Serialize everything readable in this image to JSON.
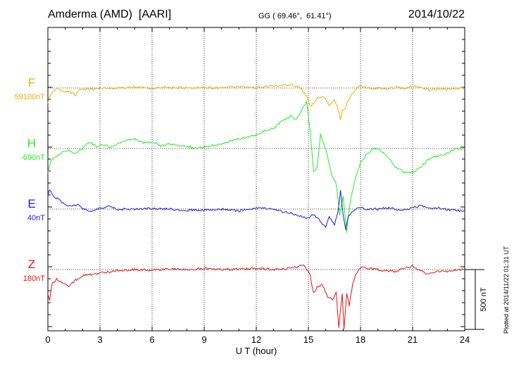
{
  "title": {
    "left": "Amderma (AMD)  [AARI]",
    "middle": "GG ( 69.46°,  61.41°)",
    "right": "2014/10/22"
  },
  "side_note": "Plotted at 2014/11/22 01:31 UT",
  "scale_bar_label": "500 nT",
  "chart_data": {
    "type": "line",
    "xlabel": "U T (hour)",
    "xlim": [
      0,
      24
    ],
    "x_ticks": [
      "0",
      "3",
      "6",
      "9",
      "12",
      "15",
      "18",
      "21",
      "24"
    ],
    "x_grid_hours": [
      3,
      6,
      9,
      12,
      15,
      18,
      21
    ],
    "scale_bar_nT": 500,
    "series": [
      {
        "name": "F",
        "baseline_label": "59100nT",
        "color": "#f5a800",
        "x": [
          0,
          0.15,
          0.3,
          0.5,
          0.8,
          1.0,
          1.3,
          1.6,
          1.75,
          2.0,
          2.3,
          2.6,
          3.0,
          3.5,
          4.0,
          4.5,
          5.0,
          5.5,
          6.0,
          7.0,
          8.0,
          9.0,
          10.0,
          11.0,
          12.0,
          12.5,
          13.0,
          13.5,
          14.0,
          14.3,
          14.6,
          14.9,
          15.1,
          15.3,
          15.45,
          15.6,
          15.8,
          16.0,
          16.2,
          16.5,
          16.7,
          16.85,
          16.95,
          17.1,
          17.25,
          17.45,
          17.7,
          18.0,
          18.3,
          18.7,
          19.0,
          19.5,
          20.0,
          20.5,
          21.0,
          21.4,
          21.7,
          22.0,
          22.5,
          23.0,
          23.5,
          24.0
        ],
        "y": [
          -120,
          -55,
          -40,
          0,
          -20,
          -30,
          -35,
          -60,
          -25,
          -10,
          -8,
          -12,
          0,
          -5,
          4,
          2,
          8,
          5,
          0,
          5,
          2,
          0,
          5,
          10,
          4,
          12,
          18,
          22,
          30,
          15,
          -10,
          -70,
          -150,
          -130,
          -90,
          -80,
          -70,
          -95,
          -150,
          -100,
          -170,
          -270,
          -190,
          -180,
          -120,
          -60,
          -15,
          20,
          0,
          -5,
          -2,
          -10,
          5,
          -2,
          15,
          5,
          -8,
          -20,
          -4,
          -10,
          -2,
          0
        ]
      },
      {
        "name": "H",
        "baseline_label": "-690nT",
        "color": "#22ee22",
        "x": [
          0,
          0.2,
          0.5,
          0.8,
          1.2,
          1.6,
          2.0,
          2.4,
          2.8,
          3.2,
          3.6,
          4.0,
          4.5,
          5.0,
          5.5,
          6.0,
          6.5,
          7.0,
          8.0,
          8.5,
          9.0,
          10.0,
          11.0,
          12.0,
          12.5,
          13.0,
          13.5,
          14.0,
          14.3,
          14.6,
          14.9,
          15.1,
          15.3,
          15.5,
          15.7,
          15.9,
          16.1,
          16.3,
          16.6,
          16.8,
          17.0,
          17.2,
          17.4,
          17.7,
          18.0,
          18.3,
          18.7,
          19.0,
          19.5,
          20.0,
          20.5,
          21.0,
          21.5,
          22.0,
          22.5,
          23.0,
          23.5,
          24.0
        ],
        "y": [
          -200,
          -100,
          -60,
          -30,
          -20,
          -40,
          0,
          50,
          20,
          30,
          10,
          40,
          70,
          80,
          50,
          60,
          20,
          40,
          20,
          0,
          10,
          40,
          80,
          110,
          150,
          170,
          230,
          270,
          240,
          320,
          390,
          150,
          -200,
          -160,
          120,
          40,
          -60,
          -200,
          -300,
          -550,
          -400,
          -700,
          -450,
          -250,
          -120,
          -60,
          0,
          0,
          -60,
          -150,
          -200,
          -200,
          -150,
          -80,
          -60,
          -40,
          0,
          0
        ]
      },
      {
        "name": "E",
        "baseline_label": "40nT",
        "color": "#1a1adc",
        "x": [
          0,
          0.1,
          0.3,
          0.6,
          1.0,
          1.4,
          1.7,
          2.0,
          2.5,
          3.0,
          3.5,
          4.0,
          5.0,
          6.0,
          7.0,
          8.0,
          9.0,
          10.0,
          11.0,
          12.0,
          13.0,
          13.5,
          14.0,
          14.5,
          15.0,
          15.2,
          15.5,
          15.8,
          16.0,
          16.2,
          16.5,
          16.7,
          16.85,
          17.0,
          17.15,
          17.3,
          17.6,
          18.0,
          18.5,
          19.0,
          19.5,
          20.0,
          20.5,
          21.0,
          21.5,
          22.0,
          22.5,
          23.0,
          23.5,
          24.0
        ],
        "y": [
          120,
          160,
          110,
          80,
          40,
          20,
          40,
          0,
          -15,
          5,
          20,
          0,
          0,
          5,
          0,
          -10,
          -10,
          0,
          -15,
          10,
          0,
          -25,
          -30,
          -60,
          -80,
          -45,
          -70,
          -120,
          -150,
          -60,
          -130,
          -20,
          150,
          -50,
          -170,
          -60,
          -10,
          15,
          -5,
          0,
          10,
          0,
          -10,
          10,
          30,
          0,
          10,
          -5,
          -10,
          -20
        ]
      },
      {
        "name": "Z",
        "baseline_label": "180nT",
        "color": "#e81010",
        "x": [
          0,
          0.1,
          0.25,
          0.5,
          0.8,
          1.2,
          1.6,
          2.0,
          2.5,
          3.0,
          3.5,
          4.0,
          5.0,
          6.0,
          7.0,
          8.0,
          9.0,
          10.0,
          11.0,
          12.0,
          13.0,
          13.5,
          14.0,
          14.4,
          14.7,
          14.9,
          15.1,
          15.3,
          15.5,
          15.8,
          16.1,
          16.4,
          16.6,
          16.75,
          16.85,
          16.95,
          17.05,
          17.2,
          17.35,
          17.55,
          17.8,
          18.1,
          18.5,
          19.0,
          19.5,
          20.0,
          20.5,
          21.0,
          21.4,
          21.8,
          22.2,
          22.6,
          23.0,
          23.5,
          24.0
        ],
        "y": [
          -200,
          -250,
          -120,
          -80,
          -110,
          -140,
          -90,
          -50,
          -40,
          -30,
          -20,
          -10,
          0,
          -5,
          5,
          0,
          10,
          0,
          5,
          10,
          0,
          8,
          12,
          25,
          40,
          5,
          -50,
          -200,
          -150,
          -120,
          -230,
          -250,
          -190,
          -490,
          -330,
          -200,
          -500,
          -200,
          -300,
          -120,
          -20,
          30,
          10,
          0,
          -15,
          -15,
          5,
          30,
          -5,
          -35,
          -30,
          -10,
          -15,
          -5,
          0
        ]
      }
    ]
  }
}
